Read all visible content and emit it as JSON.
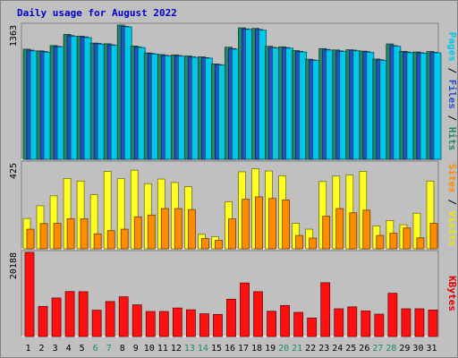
{
  "chart_data": {
    "type": "bar",
    "title": "Daily usage for August 2022",
    "categories": [
      "1",
      "2",
      "3",
      "4",
      "5",
      "6",
      "7",
      "8",
      "9",
      "10",
      "11",
      "12",
      "13",
      "14",
      "15",
      "16",
      "17",
      "18",
      "19",
      "20",
      "21",
      "22",
      "23",
      "24",
      "25",
      "26",
      "27",
      "28",
      "29",
      "30",
      "31"
    ],
    "weekend_days": [
      "6",
      "7",
      "13",
      "14",
      "20",
      "21",
      "27",
      "28"
    ],
    "panels": [
      {
        "id": "pages-files-hits",
        "ymax_label": "1363",
        "ymax": 1363,
        "side_label": [
          {
            "text": "Pages",
            "color": "#00c8e8"
          },
          {
            "text": " / ",
            "color": "#000000"
          },
          {
            "text": "Files",
            "color": "#2850c8"
          },
          {
            "text": " / ",
            "color": "#000000"
          },
          {
            "text": "Hits",
            "color": "#1e8a6a"
          }
        ],
        "series": [
          {
            "name": "Hits",
            "color": "#1e8a6a",
            "values": [
              1118,
              1101,
              1155,
              1268,
              1250,
              1180,
              1173,
              1363,
              1150,
              1080,
              1063,
              1060,
              1048,
              1040,
              968,
              1138,
              1335,
              1329,
              1148,
              1142,
              1104,
              1016,
              1124,
              1110,
              1112,
              1098,
              1018,
              1171,
              1096,
              1090,
              1094
            ]
          },
          {
            "name": "Files",
            "color": "#2850c8",
            "values": [
              1108,
              1094,
              1146,
              1256,
              1243,
              1176,
              1163,
              1350,
              1140,
              1074,
              1055,
              1053,
              1040,
              1032,
              962,
              1124,
              1324,
              1318,
              1136,
              1134,
              1096,
              1008,
              1115,
              1100,
              1108,
              1092,
              1010,
              1154,
              1089,
              1082,
              1086
            ]
          },
          {
            "name": "Pages",
            "color": "#00c8e8",
            "values": [
              1100,
              1088,
              1140,
              1248,
              1236,
              1170,
              1157,
              1345,
              1135,
              1069,
              1050,
              1048,
              1035,
              1027,
              957,
              1118,
              1318,
              1311,
              1131,
              1129,
              1090,
              1004,
              1110,
              1094,
              1102,
              1086,
              1005,
              1148,
              1083,
              1077,
              1081
            ]
          }
        ]
      },
      {
        "id": "sites-visits",
        "ymax_label": "425",
        "ymax": 425,
        "side_label": [
          {
            "text": "Sites",
            "color": "#ff8c00"
          },
          {
            "text": " / ",
            "color": "#000000"
          },
          {
            "text": "Visits",
            "color": "#e8e800"
          }
        ],
        "series": [
          {
            "name": "Visits",
            "color": "#ffff22",
            "values": [
              150,
              213,
              262,
              348,
              335,
              268,
              383,
              347,
              389,
              322,
              345,
              328,
              307,
              72,
              60,
              233,
              381,
              396,
              385,
              361,
              126,
              97,
              333,
              360,
              365,
              383,
              113,
              140,
              119,
              176,
              335
            ]
          },
          {
            "name": "Sites",
            "color": "#ff8c00",
            "values": [
              97,
              125,
              126,
              149,
              148,
              74,
              90,
              97,
              158,
              167,
              199,
              199,
              194,
              51,
              42,
              148,
              245,
              257,
              249,
              242,
              66,
              53,
              161,
              199,
              178,
              191,
              66,
              77,
              103,
              54,
              126
            ]
          }
        ]
      },
      {
        "id": "kbytes",
        "ymax_label": "20188",
        "ymax": 20188,
        "side_label": [
          {
            "text": "KBytes",
            "color": "#e00000"
          }
        ],
        "series": [
          {
            "name": "KBytes",
            "color": "#ff1010",
            "values": [
              20188,
              7230,
              9250,
              10790,
              10750,
              6320,
              8390,
              9530,
              7600,
              6000,
              6000,
              6840,
              6410,
              5450,
              5290,
              8950,
              12850,
              10760,
              6070,
              7440,
              5790,
              4440,
              12910,
              6650,
              7120,
              6120,
              5360,
              10380,
              6650,
              6650,
              6360
            ]
          }
        ]
      }
    ]
  }
}
